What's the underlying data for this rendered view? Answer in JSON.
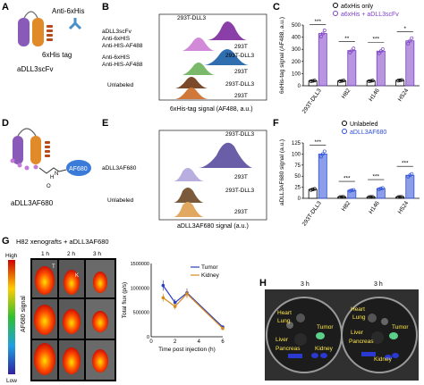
{
  "panels": {
    "A": {
      "letter": "A",
      "anti_his_label": "Anti-6xHis",
      "his_tag_label": "6xHis tag",
      "construct_label": "aDLL3scFv"
    },
    "B": {
      "letter": "B",
      "row_labels": [
        "aDLL3scFv",
        "Anti-6xHIS",
        "Anti-HIS-AF488",
        "Anti-6xHIS",
        "Anti-HIS-AF488",
        "Unlabeled"
      ],
      "peak_labels": [
        "293T-DLL3",
        "293T",
        "293T-DLL3",
        "293T",
        "293T-DLL3",
        "293T"
      ],
      "xlabel": "6xHis-tag signal (AF488, a.u.)",
      "colors": [
        "#8a3ea8",
        "#d28ad8",
        "#2f6fb0",
        "#7ab86a",
        "#7a4a2a",
        "#d0783a"
      ]
    },
    "C": {
      "letter": "C",
      "legend": [
        "a6xHis only",
        "a6xHis + aDLL3scFv"
      ],
      "ylabel": "6xHis-tag signal (AF488, a.u.)",
      "categories": [
        "293T-DLL3",
        "H82",
        "H146",
        "H524"
      ],
      "sig": [
        "***",
        "**",
        "***",
        "*"
      ],
      "accent": "#7b3fc4"
    },
    "D": {
      "letter": "D",
      "nh_label": "H",
      "n_label": "N",
      "o_label": "O",
      "dye_label": "AF680",
      "construct_label": "aDLL3AF680"
    },
    "E": {
      "letter": "E",
      "row_labels": [
        "aDLL3AF680",
        "Unlabeled"
      ],
      "peak_labels": [
        "293T-DLL3",
        "293T",
        "293T-DLL3",
        "293T"
      ],
      "xlabel": "aDLL3AF680 signal (a.u.)",
      "colors": [
        "#6b5ea8",
        "#b8aee0",
        "#7a5a3a",
        "#e0a860"
      ]
    },
    "F": {
      "letter": "F",
      "legend": [
        "Unlabeled",
        "aDLL3AF680"
      ],
      "ylabel": "aDLL3AF680 signal (a.u.)",
      "categories": [
        "293T-DLL3",
        "H82",
        "H146",
        "H524"
      ],
      "sig": [
        "***",
        "***",
        "***",
        "***"
      ],
      "accent": "#2d4fd6"
    },
    "G": {
      "letter": "G",
      "title": "H82 xenografts + aDLL3AF680",
      "timepoints": [
        "1 h",
        "2 h",
        "3 h"
      ],
      "colorbar_high": "High",
      "colorbar_low": "Low",
      "colorbar_label": "AF680 signal",
      "organ_marks": [
        "T",
        "K"
      ]
    },
    "H": {
      "letter": "H",
      "times": [
        "3 h",
        "3 h"
      ],
      "dish1_labels": [
        "Heart",
        "Lung",
        "Liver",
        "Pancreas",
        "Tumor",
        "Kidney"
      ],
      "dish2_labels": [
        "Heart",
        "Lung",
        "Liver",
        "Pancreas",
        "Tumor",
        "Kidney"
      ]
    }
  },
  "chart_data": [
    {
      "panel": "C",
      "type": "bar",
      "ylabel": "6xHis-tag signal (AF488, a.u.)",
      "categories": [
        "293T-DLL3",
        "H82",
        "H146",
        "H524"
      ],
      "ylim": [
        0,
        500
      ],
      "yticks": [
        0,
        100,
        200,
        300,
        400,
        500
      ],
      "series": [
        {
          "name": "a6xHis only",
          "values": [
            40,
            40,
            40,
            45
          ],
          "color": "#000000"
        },
        {
          "name": "a6xHis + aDLL3scFv",
          "values": [
            430,
            290,
            285,
            370
          ],
          "color": "#7b3fc4"
        }
      ]
    },
    {
      "panel": "F",
      "type": "bar",
      "ylabel": "aDLL3AF680 signal (a.u.)",
      "categories": [
        "293T-DLL3",
        "H82",
        "H146",
        "H524"
      ],
      "ylim": [
        0,
        125
      ],
      "yticks": [
        0,
        25,
        50,
        75,
        100,
        125
      ],
      "series": [
        {
          "name": "Unlabeled",
          "values": [
            20,
            3,
            3,
            3
          ],
          "color": "#000000"
        },
        {
          "name": "aDLL3AF680",
          "values": [
            100,
            18,
            22,
            52
          ],
          "color": "#2d4fd6"
        }
      ]
    },
    {
      "panel": "G",
      "type": "line",
      "xlabel": "Time post injection (h)",
      "ylabel": "Total flux (p/s)",
      "xlim": [
        0,
        6
      ],
      "xticks": [
        0,
        2,
        4,
        6
      ],
      "ylim": [
        0,
        1500000
      ],
      "yticks": [
        "0",
        "500000",
        "1000000",
        "1500000"
      ],
      "series": [
        {
          "name": "Tumor",
          "x": [
            1,
            2,
            3,
            6
          ],
          "y": [
            1050000,
            700000,
            900000,
            200000
          ],
          "color": "#2d3fbf"
        },
        {
          "name": "Kidney",
          "x": [
            1,
            2,
            3,
            6
          ],
          "y": [
            800000,
            620000,
            880000,
            170000
          ],
          "color": "#d88a1a"
        }
      ]
    }
  ]
}
